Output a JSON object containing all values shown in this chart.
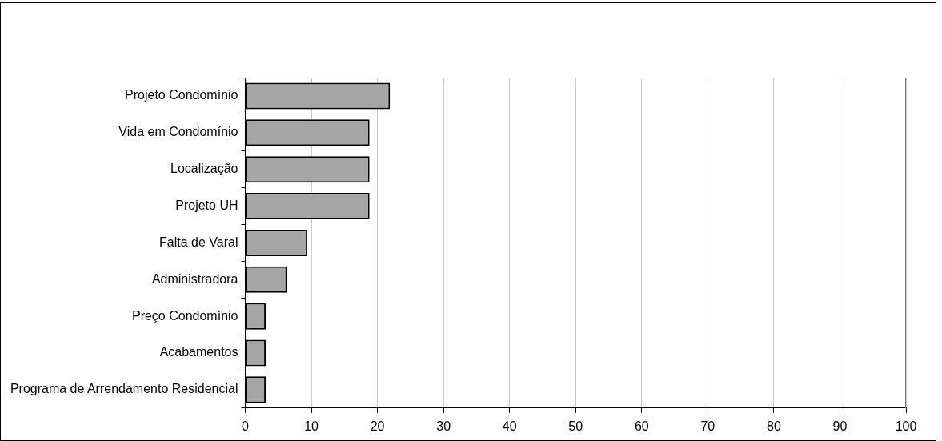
{
  "chart_data": {
    "type": "bar",
    "orientation": "horizontal",
    "categories": [
      "Projeto Condomínio",
      "Vida em Condomínio",
      "Localização",
      "Projeto UH",
      "Falta de Varal",
      "Administradora",
      "Preço Condomínio",
      "Acabamentos",
      "Programa de Arrendamento Residencial"
    ],
    "values": [
      21.9,
      18.8,
      18.8,
      18.8,
      9.4,
      6.3,
      3.1,
      3.1,
      3.1
    ],
    "color": "#a6a6a6",
    "xlim": [
      0,
      100
    ],
    "xticks": [
      0,
      10,
      20,
      30,
      40,
      50,
      60,
      70,
      80,
      90,
      100
    ],
    "grid": "x",
    "legend": false
  }
}
